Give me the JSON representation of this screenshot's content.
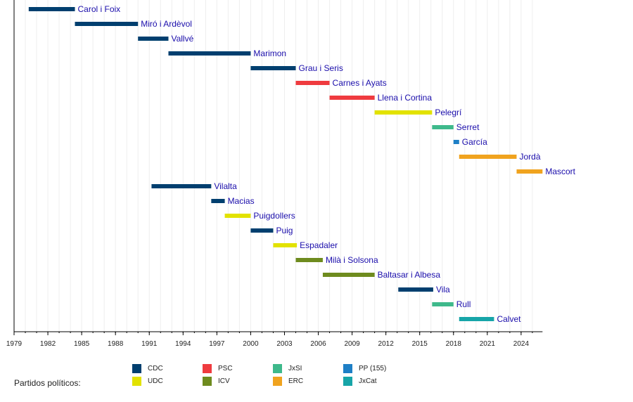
{
  "chart_data": {
    "type": "timeline",
    "title": "",
    "xlabel": "",
    "ylabel": "",
    "xlim": [
      1979,
      2025.9
    ],
    "x_ticks": [
      "1979",
      "1982",
      "1985",
      "1988",
      "1991",
      "1994",
      "1997",
      "2000",
      "2003",
      "2006",
      "2009",
      "2012",
      "2015",
      "2018",
      "2021",
      "2024"
    ],
    "grid": "vertical, every year",
    "legend_title": "Partidos políticos:",
    "legend_placement": "bottom",
    "parties": [
      {
        "name": "CDC",
        "color": "#003f6f"
      },
      {
        "name": "PSC",
        "color": "#ef3b3f"
      },
      {
        "name": "JxSí",
        "label": "JxSI",
        "color": "#3eb98b"
      },
      {
        "name": "PP (155)",
        "color": "#1e7fc6"
      },
      {
        "name": "UDC",
        "color": "#e2e200"
      },
      {
        "name": "ICV",
        "color": "#6e8b1e"
      },
      {
        "name": "ERC",
        "color": "#f0a31e"
      },
      {
        "name": "JxCat",
        "color": "#17a5a8"
      }
    ],
    "series": [
      {
        "name": "Carol i Foix",
        "party": "CDC",
        "start": 1980.3,
        "end": 1984.4
      },
      {
        "name": "Miró i Ardèvol",
        "party": "CDC",
        "start": 1984.4,
        "end": 1990.0
      },
      {
        "name": "Vallvé",
        "party": "CDC",
        "start": 1990.0,
        "end": 1992.7
      },
      {
        "name": "Marimon",
        "party": "CDC",
        "start": 1992.7,
        "end": 2000.0
      },
      {
        "name": "Grau i Seris",
        "party": "CDC",
        "start": 2000.0,
        "end": 2004.0
      },
      {
        "name": "Carnes i Ayats",
        "party": "PSC",
        "start": 2004.0,
        "end": 2007.0
      },
      {
        "name": "Llena i Cortina",
        "party": "PSC",
        "start": 2007.0,
        "end": 2011.0
      },
      {
        "name": "Pelegrí",
        "party": "UDC",
        "start": 2011.0,
        "end": 2016.1
      },
      {
        "name": "Serret",
        "party": "JxSí",
        "start": 2016.1,
        "end": 2018.0
      },
      {
        "name": "García",
        "party": "PP (155)",
        "start": 2018.0,
        "end": 2018.5
      },
      {
        "name": "Jordà",
        "party": "ERC",
        "start": 2018.5,
        "end": 2023.6
      },
      {
        "name": "Mascort",
        "party": "ERC",
        "start": 2023.6,
        "end": 2025.9
      },
      {
        "name": "Vilalta",
        "party": "CDC",
        "start": 1991.2,
        "end": 1996.5
      },
      {
        "name": "Macias",
        "party": "CDC",
        "start": 1996.5,
        "end": 1997.7
      },
      {
        "name": "Puigdollers",
        "party": "UDC",
        "start": 1997.7,
        "end": 2000.0
      },
      {
        "name": "Puig",
        "party": "CDC",
        "start": 2000.0,
        "end": 2002.0
      },
      {
        "name": "Espadaler",
        "party": "UDC",
        "start": 2002.0,
        "end": 2004.1
      },
      {
        "name": "Milà i Solsona",
        "party": "ICV",
        "start": 2004.0,
        "end": 2006.4
      },
      {
        "name": "Baltasar i Albesa",
        "party": "ICV",
        "start": 2006.4,
        "end": 2011.0
      },
      {
        "name": "Vila",
        "party": "CDC",
        "start": 2013.1,
        "end": 2016.2
      },
      {
        "name": "Rull",
        "party": "JxSí",
        "start": 2016.1,
        "end": 2018.0
      },
      {
        "name": "Calvet",
        "party": "JxCat",
        "start": 2018.5,
        "end": 2021.6
      }
    ]
  }
}
